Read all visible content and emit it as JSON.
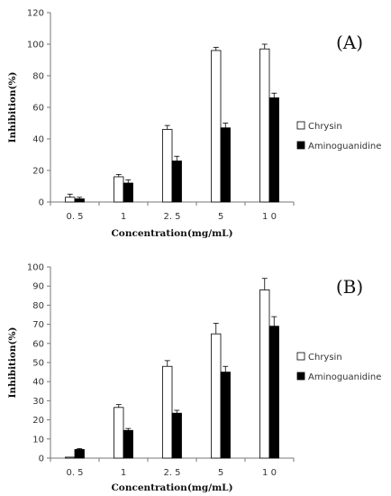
{
  "chart_data": [
    {
      "type": "bar",
      "panel_label": "(A)",
      "categories": [
        "0.5",
        "1",
        "2.5",
        "5",
        "10"
      ],
      "category_labels": [
        "0. 5",
        "1",
        "2. 5",
        "5",
        "1 0"
      ],
      "series": [
        {
          "name": "Chrysin",
          "values": [
            3,
            16,
            46,
            96,
            97
          ],
          "errors": [
            2,
            1.5,
            2.5,
            2,
            3
          ],
          "color": "#ffffff"
        },
        {
          "name": "Aminoguanidine",
          "values": [
            2,
            12,
            26,
            47,
            66
          ],
          "errors": [
            1,
            2,
            3,
            3,
            3
          ],
          "color": "#000000"
        }
      ],
      "yticks": [
        0,
        20,
        40,
        60,
        80,
        100,
        120
      ],
      "ylim": [
        0,
        120
      ],
      "xlabel": "Concentration(mg/mL)",
      "ylabel": "Inhibition(%)",
      "grid": false,
      "legend_position": "right"
    },
    {
      "type": "bar",
      "panel_label": "(B)",
      "categories": [
        "0.5",
        "1",
        "2.5",
        "5",
        "10"
      ],
      "category_labels": [
        "0. 5",
        "1",
        "2. 5",
        "5",
        "1 0"
      ],
      "series": [
        {
          "name": "Chrysin",
          "values": [
            0.5,
            26.5,
            48,
            65,
            88
          ],
          "errors": [
            0,
            1.5,
            3,
            5.5,
            6
          ],
          "color": "#ffffff"
        },
        {
          "name": "Aminoguanidine",
          "values": [
            4.5,
            14.5,
            23.5,
            45,
            69
          ],
          "errors": [
            0.5,
            1,
            1.5,
            3,
            5
          ],
          "color": "#000000"
        }
      ],
      "yticks": [
        0,
        10,
        20,
        30,
        40,
        50,
        60,
        70,
        80,
        90,
        100
      ],
      "ylim": [
        0,
        100
      ],
      "xlabel": "Concentration(mg/mL)",
      "ylabel": "Inhibition(%)",
      "grid": false,
      "legend_position": "right"
    }
  ]
}
